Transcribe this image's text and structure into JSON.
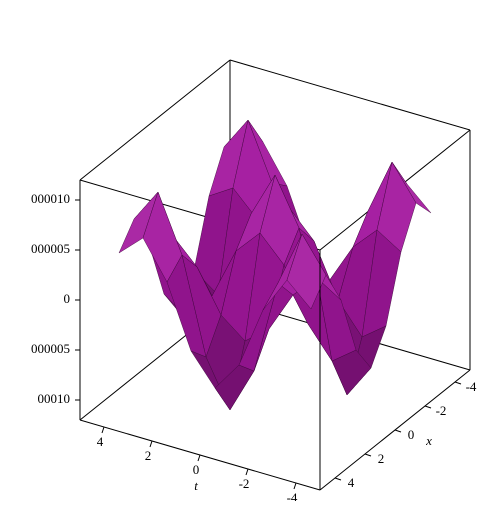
{
  "chart_data": {
    "type": "surface",
    "color": "#a3179e",
    "xlabel": "x",
    "tlabel": "t",
    "x": [
      -4,
      -3,
      -2,
      -1,
      0,
      1,
      2,
      3,
      4
    ],
    "t": [
      -4,
      -3,
      -2,
      -1,
      0,
      1,
      2,
      3,
      4
    ],
    "z": [
      [
        4.2e-06,
        6.4e-06,
        2.7e-06,
        -3.5e-06,
        -6.5e-06,
        -3.5e-06,
        2.7e-06,
        6.4e-06,
        4.2e-06
      ],
      [
        6.4e-06,
        9.8e-06,
        4.2e-06,
        -5.3e-06,
        -9.9e-06,
        -5.3e-06,
        4.2e-06,
        9.8e-06,
        6.4e-06
      ],
      [
        2.7e-06,
        4.2e-06,
        1.8e-06,
        -2.3e-06,
        -4.2e-06,
        -2.3e-06,
        1.8e-06,
        4.2e-06,
        2.7e-06
      ],
      [
        -3.5e-06,
        -5.3e-06,
        -2.3e-06,
        2.9e-06,
        5.4e-06,
        2.9e-06,
        -2.3e-06,
        -5.3e-06,
        -3.5e-06
      ],
      [
        -6.5e-06,
        -9.9e-06,
        -4.2e-06,
        5.4e-06,
        1e-05,
        5.4e-06,
        -4.2e-06,
        -9.9e-06,
        -6.5e-06
      ],
      [
        -3.5e-06,
        -5.3e-06,
        -2.3e-06,
        2.9e-06,
        5.4e-06,
        2.9e-06,
        -2.3e-06,
        -5.3e-06,
        -3.5e-06
      ],
      [
        2.7e-06,
        4.2e-06,
        1.8e-06,
        -2.3e-06,
        -4.2e-06,
        -2.3e-06,
        1.8e-06,
        4.2e-06,
        2.7e-06
      ],
      [
        6.4e-06,
        9.8e-06,
        4.2e-06,
        -5.3e-06,
        -9.9e-06,
        -5.3e-06,
        4.2e-06,
        9.8e-06,
        6.4e-06
      ],
      [
        4.2e-06,
        6.4e-06,
        2.7e-06,
        -3.5e-06,
        -6.5e-06,
        -3.5e-06,
        2.7e-06,
        6.4e-06,
        4.2e-06
      ]
    ],
    "xlim": [
      -5,
      5
    ],
    "tlim": [
      -5,
      5
    ],
    "zlim": [
      -1.2e-05,
      1.2e-05
    ],
    "xticks": [
      -4,
      -2,
      0,
      2,
      4
    ],
    "tticks": [
      -4,
      -2,
      0,
      2,
      4
    ],
    "zticks": [
      {
        "value": 1e-05,
        "label": "000010"
      },
      {
        "value": 5e-06,
        "label": "000005"
      },
      0,
      {
        "value": -5e-06,
        "label": "000005"
      },
      {
        "value": -1e-05,
        "label": "00010"
      }
    ]
  }
}
